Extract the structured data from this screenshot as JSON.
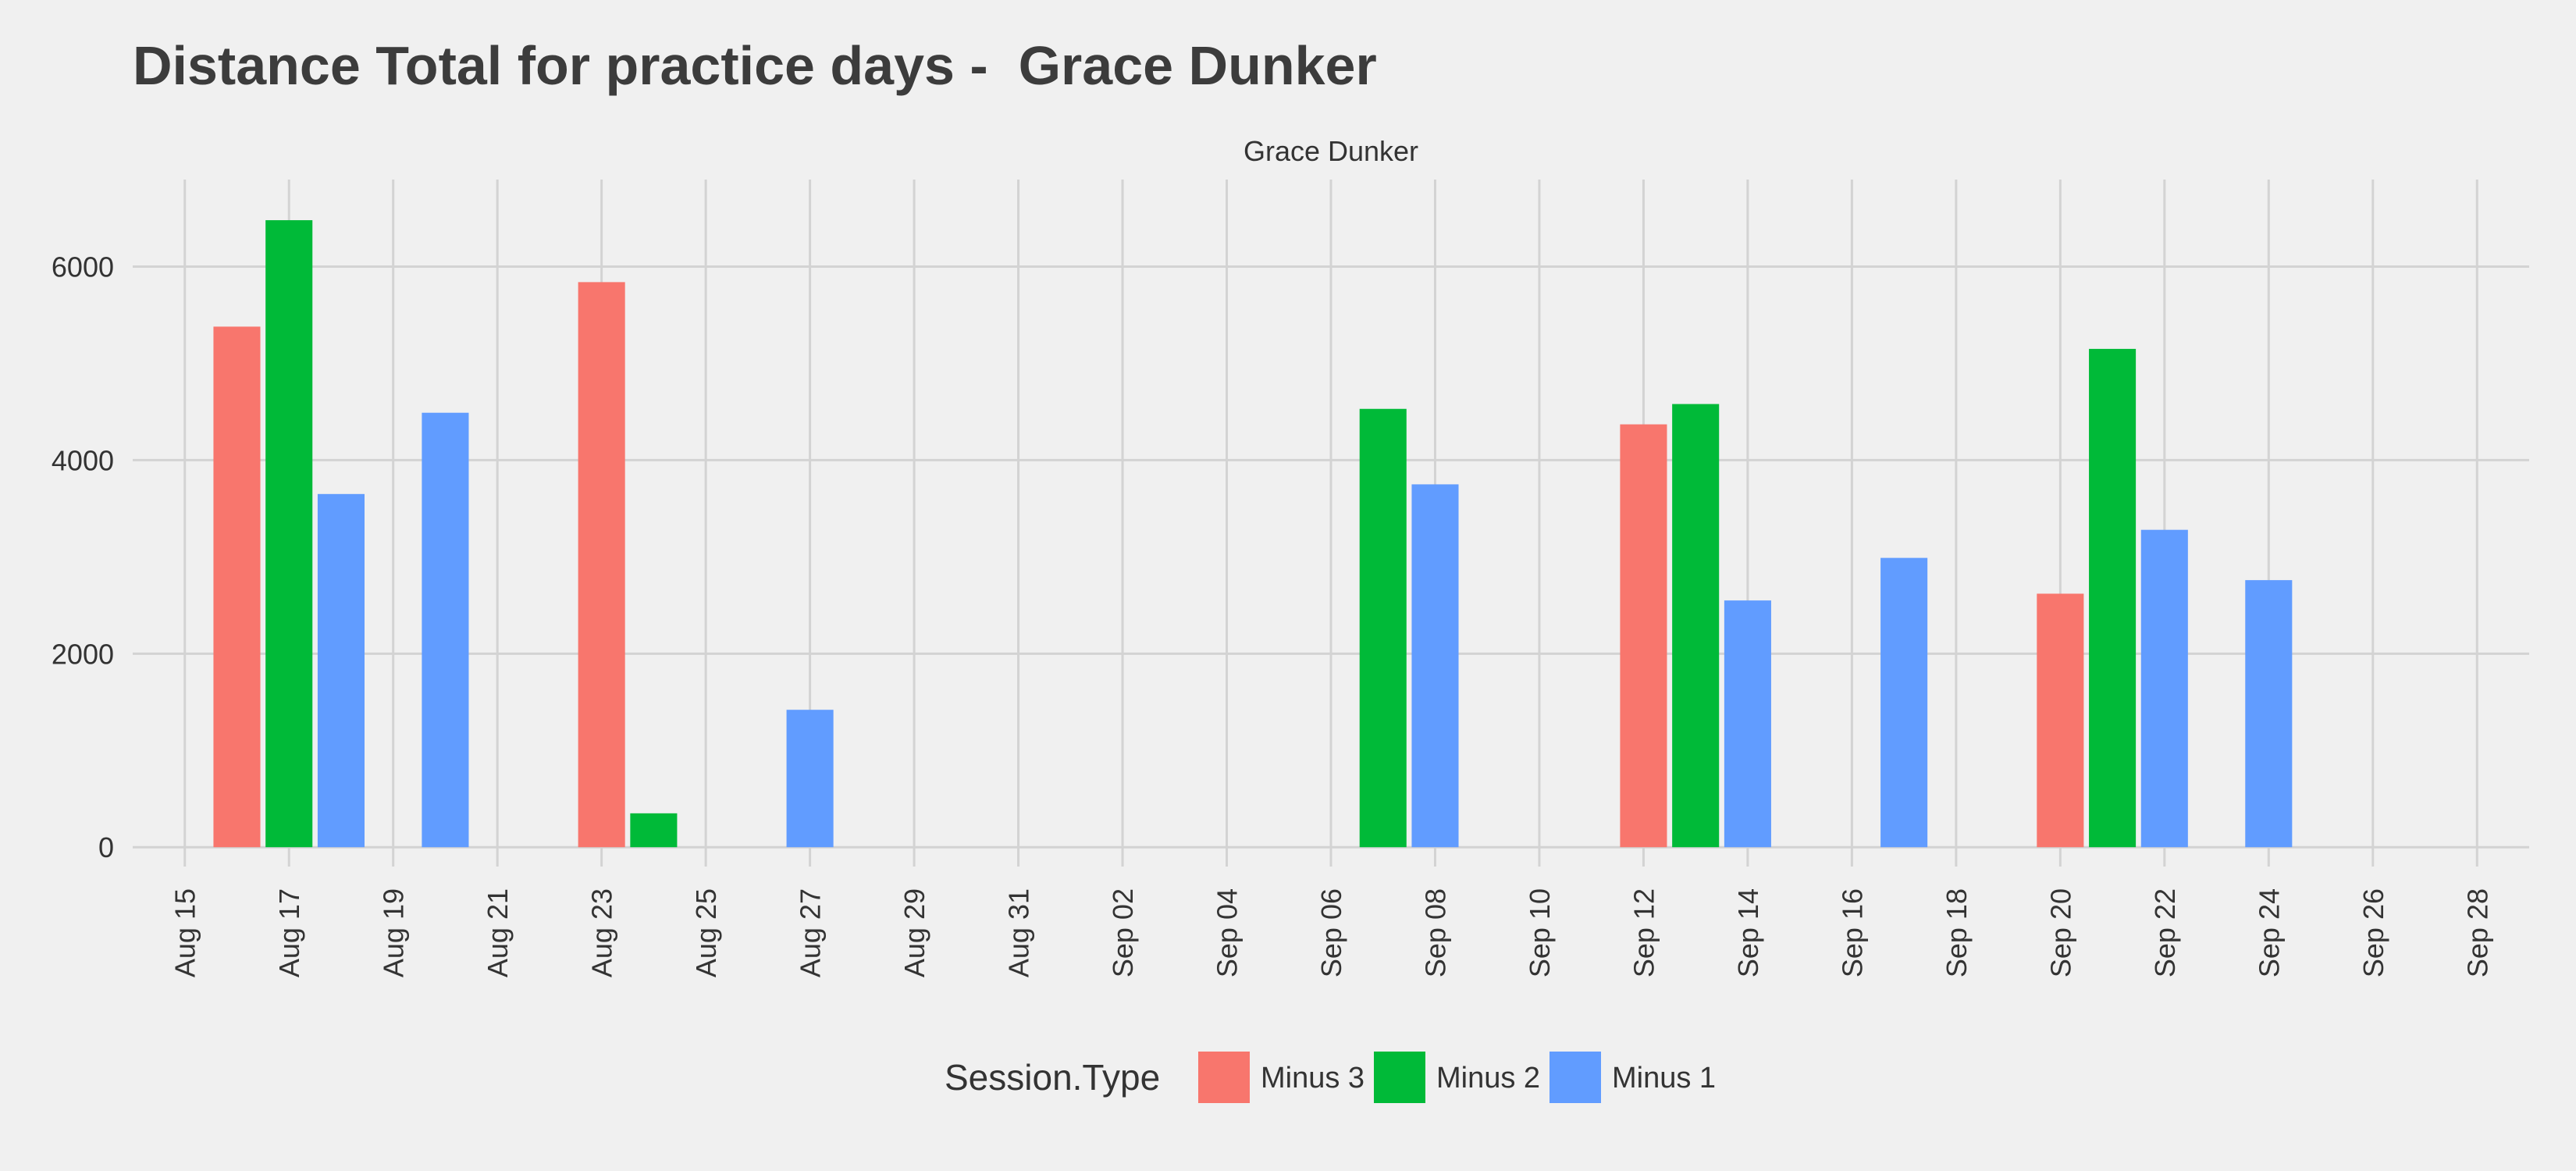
{
  "chart_data": {
    "type": "bar",
    "title": "Distance Total for practice days -  Grace Dunker",
    "facet": "Grace Dunker",
    "xlabel": "",
    "ylabel": "",
    "x_ticks": [
      "2023-08-15",
      "2023-08-17",
      "2023-08-19",
      "2023-08-21",
      "2023-08-23",
      "2023-08-25",
      "2023-08-27",
      "2023-08-29",
      "2023-08-31",
      "2023-09-02",
      "2023-09-04",
      "2023-09-06",
      "2023-09-08",
      "2023-09-10",
      "2023-09-12",
      "2023-09-14",
      "2023-09-16",
      "2023-09-18",
      "2023-09-20",
      "2023-09-22",
      "2023-09-24",
      "2023-09-26",
      "2023-09-28"
    ],
    "x_tick_labels": [
      "Aug 15",
      "Aug 17",
      "Aug 19",
      "Aug 21",
      "Aug 23",
      "Aug 25",
      "Aug 27",
      "Aug 29",
      "Aug 31",
      "Sep 02",
      "Sep 04",
      "Sep 06",
      "Sep 08",
      "Sep 10",
      "Sep 12",
      "Sep 14",
      "Sep 16",
      "Sep 18",
      "Sep 20",
      "Sep 22",
      "Sep 24",
      "Sep 26",
      "Sep 28"
    ],
    "xlim": [
      "2023-08-14",
      "2023-09-29"
    ],
    "ylim": [
      -200,
      6900
    ],
    "y_ticks": [
      0,
      2000,
      4000,
      6000
    ],
    "grid": true,
    "legend": {
      "title": "Session.Type",
      "position": "bottom"
    },
    "series": [
      {
        "name": "Minus 3",
        "color": "#F8766D",
        "points": [
          {
            "date": "2023-08-16",
            "value": 5380
          },
          {
            "date": "2023-08-23",
            "value": 5840
          },
          {
            "date": "2023-09-12",
            "value": 4370
          },
          {
            "date": "2023-09-20",
            "value": 2620
          }
        ]
      },
      {
        "name": "Minus 2",
        "color": "#00BA38",
        "points": [
          {
            "date": "2023-08-17",
            "value": 6480
          },
          {
            "date": "2023-08-24",
            "value": 350
          },
          {
            "date": "2023-09-07",
            "value": 4530
          },
          {
            "date": "2023-09-13",
            "value": 4580
          },
          {
            "date": "2023-09-21",
            "value": 5150
          }
        ]
      },
      {
        "name": "Minus 1",
        "color": "#619CFF",
        "points": [
          {
            "date": "2023-08-18",
            "value": 3650
          },
          {
            "date": "2023-08-20",
            "value": 4490
          },
          {
            "date": "2023-08-27",
            "value": 1420
          },
          {
            "date": "2023-09-08",
            "value": 3750
          },
          {
            "date": "2023-09-14",
            "value": 2550
          },
          {
            "date": "2023-09-17",
            "value": 2990
          },
          {
            "date": "2023-09-22",
            "value": 3280
          },
          {
            "date": "2023-09-24",
            "value": 2760
          }
        ]
      }
    ]
  }
}
